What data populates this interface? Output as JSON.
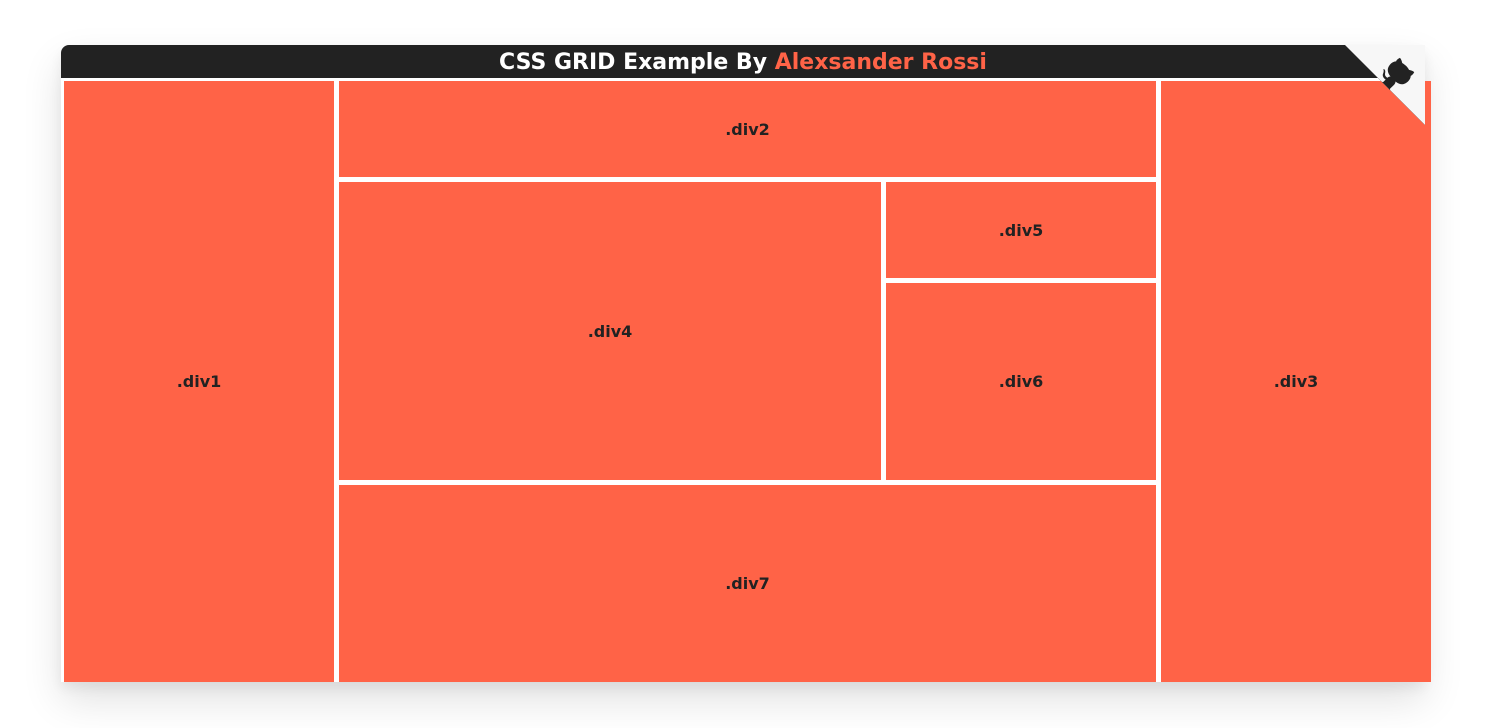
{
  "header": {
    "title_prefix": "CSS GRID Example By ",
    "author": "Alexsander Rossi"
  },
  "grid": {
    "div1": ".div1",
    "div2": ".div2",
    "div3": ".div3",
    "div4": ".div4",
    "div5": ".div5",
    "div6": ".div6",
    "div7": ".div7"
  },
  "corner": {
    "icon": "github-octocat-icon"
  },
  "colors": {
    "accent": "#ff6347",
    "header_bg": "#222222",
    "text_dark": "#222222"
  }
}
